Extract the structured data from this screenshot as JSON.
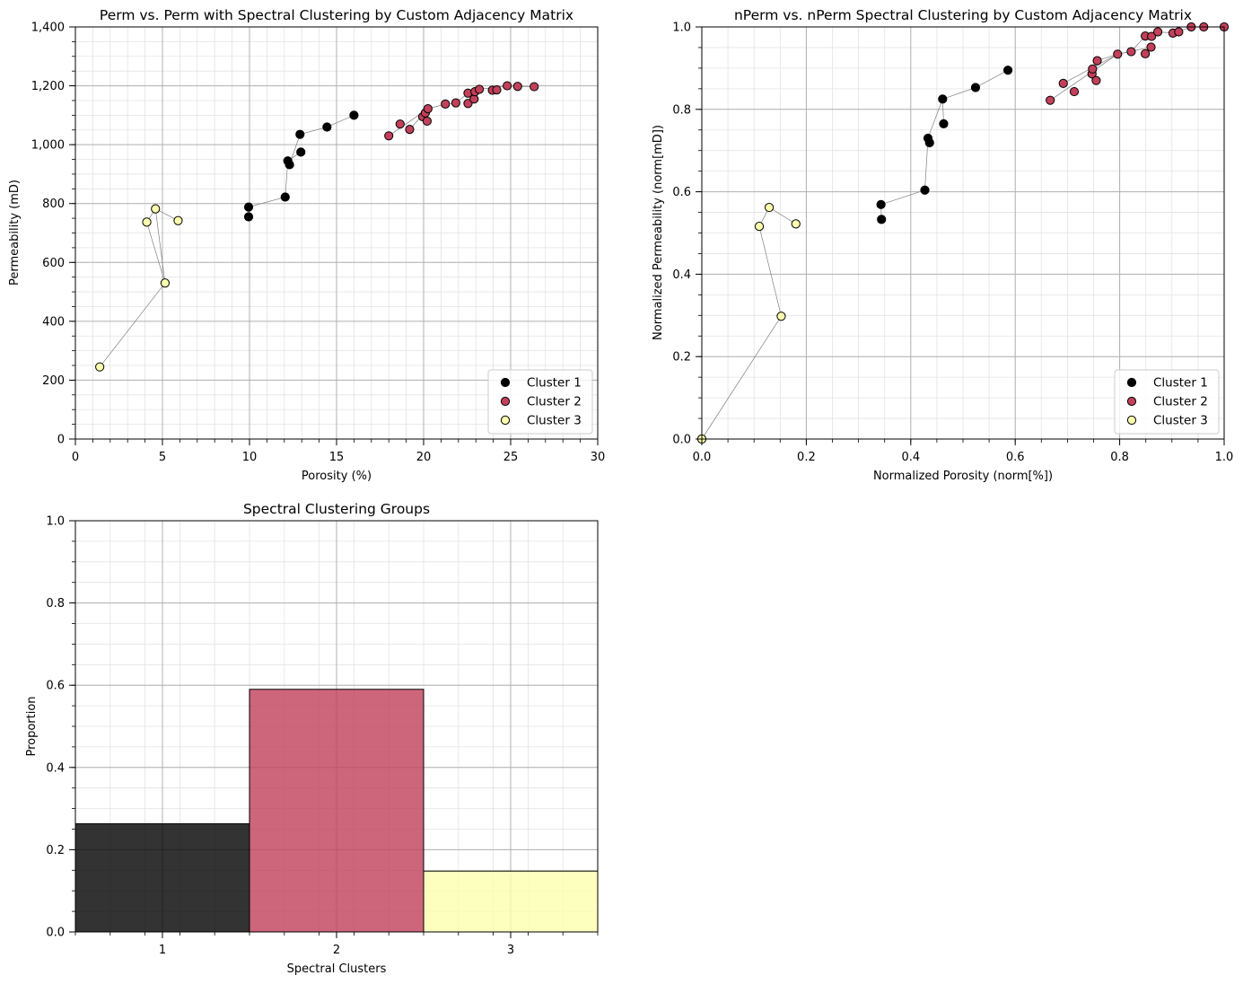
{
  "colors": {
    "cluster1": "#000000",
    "cluster2": "#c2405a",
    "cluster3": "#fdffae",
    "grid_major": "#b0b0b0",
    "grid_minor": "#e3e3e3",
    "connector": "#808080"
  },
  "chart_data": [
    {
      "id": "perm",
      "type": "scatter",
      "title": "Perm vs. Perm with Spectral Clustering by Custom Adjacency Matrix",
      "xlabel": "Porosity (%)",
      "ylabel": "Permeability (mD)",
      "xlim": [
        0,
        30
      ],
      "ylim": [
        0,
        1400
      ],
      "xticks": [
        0,
        5,
        10,
        15,
        20,
        25,
        30
      ],
      "xtick_labels": [
        "0",
        "5",
        "10",
        "15",
        "20",
        "25",
        "30"
      ],
      "yticks": [
        0,
        200,
        400,
        600,
        800,
        1000,
        1200,
        1400
      ],
      "ytick_labels": [
        "0",
        "200",
        "400",
        "600",
        "800",
        "1,000",
        "1,200",
        "1,400"
      ],
      "xminor_step": 1,
      "yminor_step": 50,
      "legend": "lower-right",
      "series": [
        {
          "name": "Cluster 1",
          "color": "cluster1",
          "points": [
            [
              9.95,
              788
            ],
            [
              9.95,
              755
            ],
            [
              12.05,
              822
            ],
            [
              12.2,
              945
            ],
            [
              12.3,
              932
            ],
            [
              12.95,
              975
            ],
            [
              12.9,
              1035
            ],
            [
              14.45,
              1060
            ],
            [
              16.0,
              1100
            ]
          ]
        },
        {
          "name": "Cluster 2",
          "color": "cluster2",
          "points": [
            [
              18.0,
              1030
            ],
            [
              18.65,
              1070
            ],
            [
              19.2,
              1052
            ],
            [
              19.95,
              1095
            ],
            [
              20.1,
              1108
            ],
            [
              20.2,
              1080
            ],
            [
              20.25,
              1122
            ],
            [
              21.25,
              1138
            ],
            [
              21.85,
              1142
            ],
            [
              22.55,
              1140
            ],
            [
              22.55,
              1175
            ],
            [
              22.9,
              1155
            ],
            [
              22.95,
              1180
            ],
            [
              23.2,
              1188
            ],
            [
              23.95,
              1185
            ],
            [
              24.2,
              1186
            ],
            [
              24.8,
              1200
            ],
            [
              25.4,
              1198
            ],
            [
              26.35,
              1197
            ]
          ]
        },
        {
          "name": "Cluster 3",
          "color": "cluster3",
          "points": [
            [
              1.4,
              245
            ],
            [
              5.15,
              530
            ],
            [
              4.1,
              737
            ],
            [
              4.6,
              782
            ],
            [
              5.9,
              742
            ]
          ]
        }
      ],
      "connectors": [
        [
          [
            1.4,
            245
          ],
          [
            5.15,
            530
          ],
          [
            4.1,
            737
          ],
          [
            4.6,
            782
          ],
          [
            5.9,
            742
          ]
        ],
        [
          [
            5.15,
            530
          ],
          [
            4.6,
            782
          ]
        ],
        [
          [
            9.95,
            788
          ],
          [
            12.05,
            822
          ],
          [
            12.2,
            945
          ],
          [
            12.3,
            932
          ],
          [
            12.9,
            1035
          ],
          [
            14.45,
            1060
          ],
          [
            16.0,
            1100
          ]
        ],
        [
          [
            12.2,
            945
          ],
          [
            12.95,
            975
          ]
        ],
        [
          [
            9.95,
            788
          ],
          [
            9.95,
            755
          ]
        ],
        [
          [
            18.0,
            1030
          ],
          [
            20.25,
            1122
          ],
          [
            21.25,
            1138
          ],
          [
            21.85,
            1142
          ],
          [
            22.55,
            1175
          ],
          [
            23.2,
            1188
          ],
          [
            24.8,
            1200
          ],
          [
            25.4,
            1198
          ],
          [
            26.35,
            1197
          ]
        ],
        [
          [
            19.2,
            1052
          ],
          [
            20.25,
            1122
          ]
        ],
        [
          [
            22.55,
            1140
          ],
          [
            22.9,
            1155
          ],
          [
            22.95,
            1180
          ]
        ],
        [
          [
            23.95,
            1185
          ],
          [
            24.2,
            1186
          ]
        ]
      ]
    },
    {
      "id": "nperm",
      "type": "scatter",
      "title": "nPerm vs. nPerm Spectral Clustering by Custom Adjacency Matrix",
      "xlabel": "Normalized Porosity (norm[%])",
      "ylabel": "Normalized Permeability (norm[mD])",
      "xlim": [
        0,
        1
      ],
      "ylim": [
        0,
        1
      ],
      "xticks": [
        0,
        0.2,
        0.4,
        0.6,
        0.8,
        1.0
      ],
      "xtick_labels": [
        "0.0",
        "0.2",
        "0.4",
        "0.6",
        "0.8",
        "1.0"
      ],
      "yticks": [
        0,
        0.2,
        0.4,
        0.6,
        0.8,
        1.0
      ],
      "ytick_labels": [
        "0.0",
        "0.2",
        "0.4",
        "0.6",
        "0.8",
        "1.0"
      ],
      "xminor_step": 0.05,
      "yminor_step": 0.05,
      "legend": "lower-right",
      "series": [
        {
          "name": "Cluster 1",
          "color": "cluster1",
          "points": [
            [
              0.343,
              0.569
            ],
            [
              0.344,
              0.533
            ],
            [
              0.427,
              0.604
            ],
            [
              0.433,
              0.73
            ],
            [
              0.436,
              0.719
            ],
            [
              0.461,
              0.825
            ],
            [
              0.463,
              0.765
            ],
            [
              0.524,
              0.853
            ],
            [
              0.586,
              0.895
            ]
          ]
        },
        {
          "name": "Cluster 2",
          "color": "cluster2",
          "points": [
            [
              0.667,
              0.822
            ],
            [
              0.692,
              0.863
            ],
            [
              0.713,
              0.843
            ],
            [
              0.747,
              0.886
            ],
            [
              0.748,
              0.898
            ],
            [
              0.755,
              0.87
            ],
            [
              0.757,
              0.918
            ],
            [
              0.796,
              0.934
            ],
            [
              0.822,
              0.94
            ],
            [
              0.849,
              0.935
            ],
            [
              0.849,
              0.978
            ],
            [
              0.86,
              0.951
            ],
            [
              0.861,
              0.977
            ],
            [
              0.873,
              0.988
            ],
            [
              0.902,
              0.985
            ],
            [
              0.913,
              0.988
            ],
            [
              0.937,
              1.0
            ],
            [
              0.961,
              1.0
            ],
            [
              1.0,
              1.0
            ]
          ]
        },
        {
          "name": "Cluster 3",
          "color": "cluster3",
          "points": [
            [
              0.0,
              0.0
            ],
            [
              0.152,
              0.298
            ],
            [
              0.11,
              0.516
            ],
            [
              0.129,
              0.562
            ],
            [
              0.18,
              0.522
            ]
          ]
        }
      ],
      "connectors": [
        [
          [
            0.0,
            0.0
          ],
          [
            0.152,
            0.298
          ],
          [
            0.11,
            0.516
          ],
          [
            0.129,
            0.562
          ],
          [
            0.18,
            0.522
          ]
        ],
        [
          [
            0.343,
            0.569
          ],
          [
            0.344,
            0.533
          ]
        ],
        [
          [
            0.343,
            0.569
          ],
          [
            0.427,
            0.604
          ],
          [
            0.433,
            0.73
          ],
          [
            0.436,
            0.719
          ]
        ],
        [
          [
            0.433,
            0.73
          ],
          [
            0.461,
            0.825
          ],
          [
            0.463,
            0.765
          ]
        ],
        [
          [
            0.461,
            0.825
          ],
          [
            0.524,
            0.853
          ],
          [
            0.586,
            0.895
          ]
        ],
        [
          [
            0.667,
            0.822
          ],
          [
            0.796,
            0.934
          ],
          [
            0.757,
            0.918
          ],
          [
            0.748,
            0.898
          ],
          [
            0.747,
            0.886
          ]
        ],
        [
          [
            0.692,
            0.863
          ],
          [
            0.796,
            0.934
          ]
        ],
        [
          [
            0.796,
            0.934
          ],
          [
            0.822,
            0.94
          ],
          [
            0.849,
            0.978
          ],
          [
            0.861,
            0.977
          ],
          [
            0.873,
            0.988
          ],
          [
            0.902,
            0.985
          ],
          [
            0.937,
            1.0
          ],
          [
            0.961,
            1.0
          ],
          [
            1.0,
            1.0
          ]
        ],
        [
          [
            0.796,
            0.934
          ],
          [
            0.86,
            0.951
          ],
          [
            0.849,
            0.935
          ]
        ]
      ]
    },
    {
      "id": "groups",
      "type": "bar",
      "title": "Spectral Clustering Groups",
      "xlabel": "Spectral Clusters",
      "ylabel": "Proportion",
      "categories": [
        "1",
        "2",
        "3"
      ],
      "values": [
        0.263,
        0.59,
        0.148
      ],
      "bar_colors": [
        "cluster1",
        "cluster2",
        "cluster3"
      ],
      "ylim": [
        0,
        1
      ],
      "yticks": [
        0,
        0.2,
        0.4,
        0.6,
        0.8,
        1.0
      ],
      "ytick_labels": [
        "0.0",
        "0.2",
        "0.4",
        "0.6",
        "0.8",
        "1.0"
      ],
      "yminor_step": 0.05
    }
  ]
}
